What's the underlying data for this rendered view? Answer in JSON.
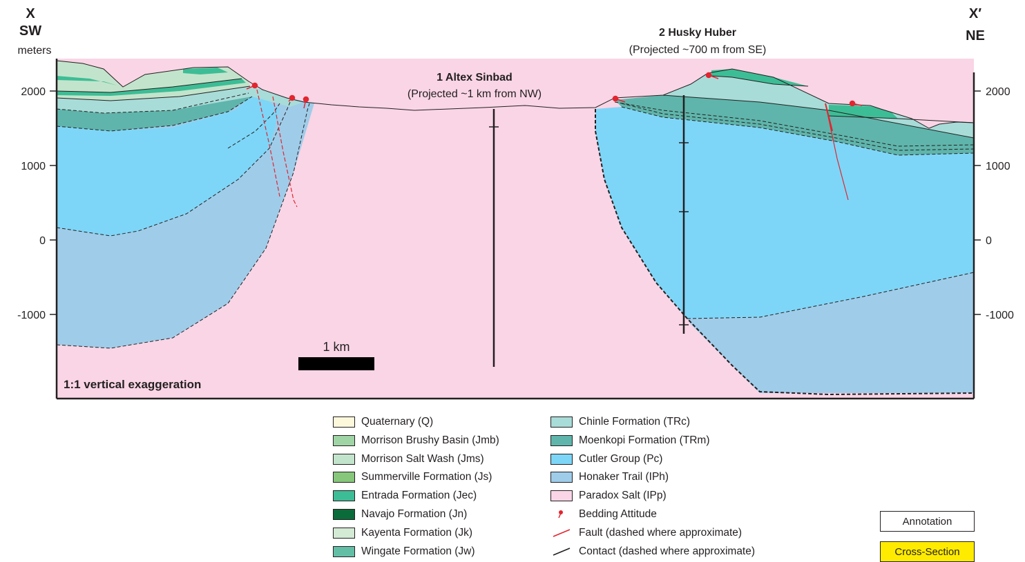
{
  "header": {
    "left_letter": "X",
    "left_dir": "SW",
    "left_units": "meters",
    "right_letter": "X′",
    "right_dir": "NE"
  },
  "wells": [
    {
      "name": "1 Altex Sinbad",
      "note": "(Projected ~1 km from NW)"
    },
    {
      "name": "2 Husky Huber",
      "note": "(Projected ~700 m from SE)"
    }
  ],
  "axis": {
    "left_ticks": [
      "2000",
      "1000",
      "0",
      "-1000"
    ],
    "right_ticks": [
      "2000",
      "1000",
      "0",
      "-1000"
    ]
  },
  "scale_bar_label": "1 km",
  "exaggeration_note": "1:1 vertical exaggeration",
  "colors": {
    "quaternary": "#fdf8dc",
    "morrison_brushy": "#9fd4a6",
    "morrison_salt": "#c3e4cc",
    "summerville": "#86c77c",
    "entrada": "#3dbd95",
    "navajo": "#0b6b3a",
    "kayenta": "#d3ead5",
    "wingate": "#62bfa6",
    "chinle": "#a8dcd8",
    "moenkopi": "#5fb5ab",
    "cutler": "#7dd6f7",
    "honaker": "#9fcce9",
    "paradox": "#f9d5e5",
    "fault": "#e2252f",
    "contact": "#231f20"
  },
  "legend": {
    "col1": [
      {
        "label": "Quaternary (Q)",
        "color_key": "quaternary"
      },
      {
        "label": "Morrison Brushy Basin (Jmb)",
        "color_key": "morrison_brushy"
      },
      {
        "label": "Morrison Salt Wash (Jms)",
        "color_key": "morrison_salt"
      },
      {
        "label": "Summerville Formation (Js)",
        "color_key": "summerville"
      },
      {
        "label": "Entrada Formation (Jec)",
        "color_key": "entrada"
      },
      {
        "label": "Navajo Formation (Jn)",
        "color_key": "navajo"
      },
      {
        "label": "Kayenta Formation (Jk)",
        "color_key": "kayenta"
      },
      {
        "label": "Wingate Formation (Jw)",
        "color_key": "wingate"
      }
    ],
    "col2": [
      {
        "label": "Chinle Formation (TRc)",
        "color_key": "chinle"
      },
      {
        "label": "Moenkopi Formation (TRm)",
        "color_key": "moenkopi"
      },
      {
        "label": "Cutler Group (Pc)",
        "color_key": "cutler"
      },
      {
        "label": "Honaker Trail (IPh)",
        "color_key": "honaker"
      },
      {
        "label": "Paradox Salt (IPp)",
        "color_key": "paradox"
      }
    ],
    "symbols": [
      {
        "label": "Bedding Attitude",
        "icon": "bedding-attitude-icon"
      },
      {
        "label": "Fault (dashed where approximate)",
        "icon": "fault-line-icon"
      },
      {
        "label": "Contact (dashed where approximate)",
        "icon": "contact-line-icon"
      }
    ]
  },
  "buttons": {
    "annotation": "Annotation",
    "cross_section": "Cross-Section",
    "cross_section_color": "#ffeb00"
  }
}
